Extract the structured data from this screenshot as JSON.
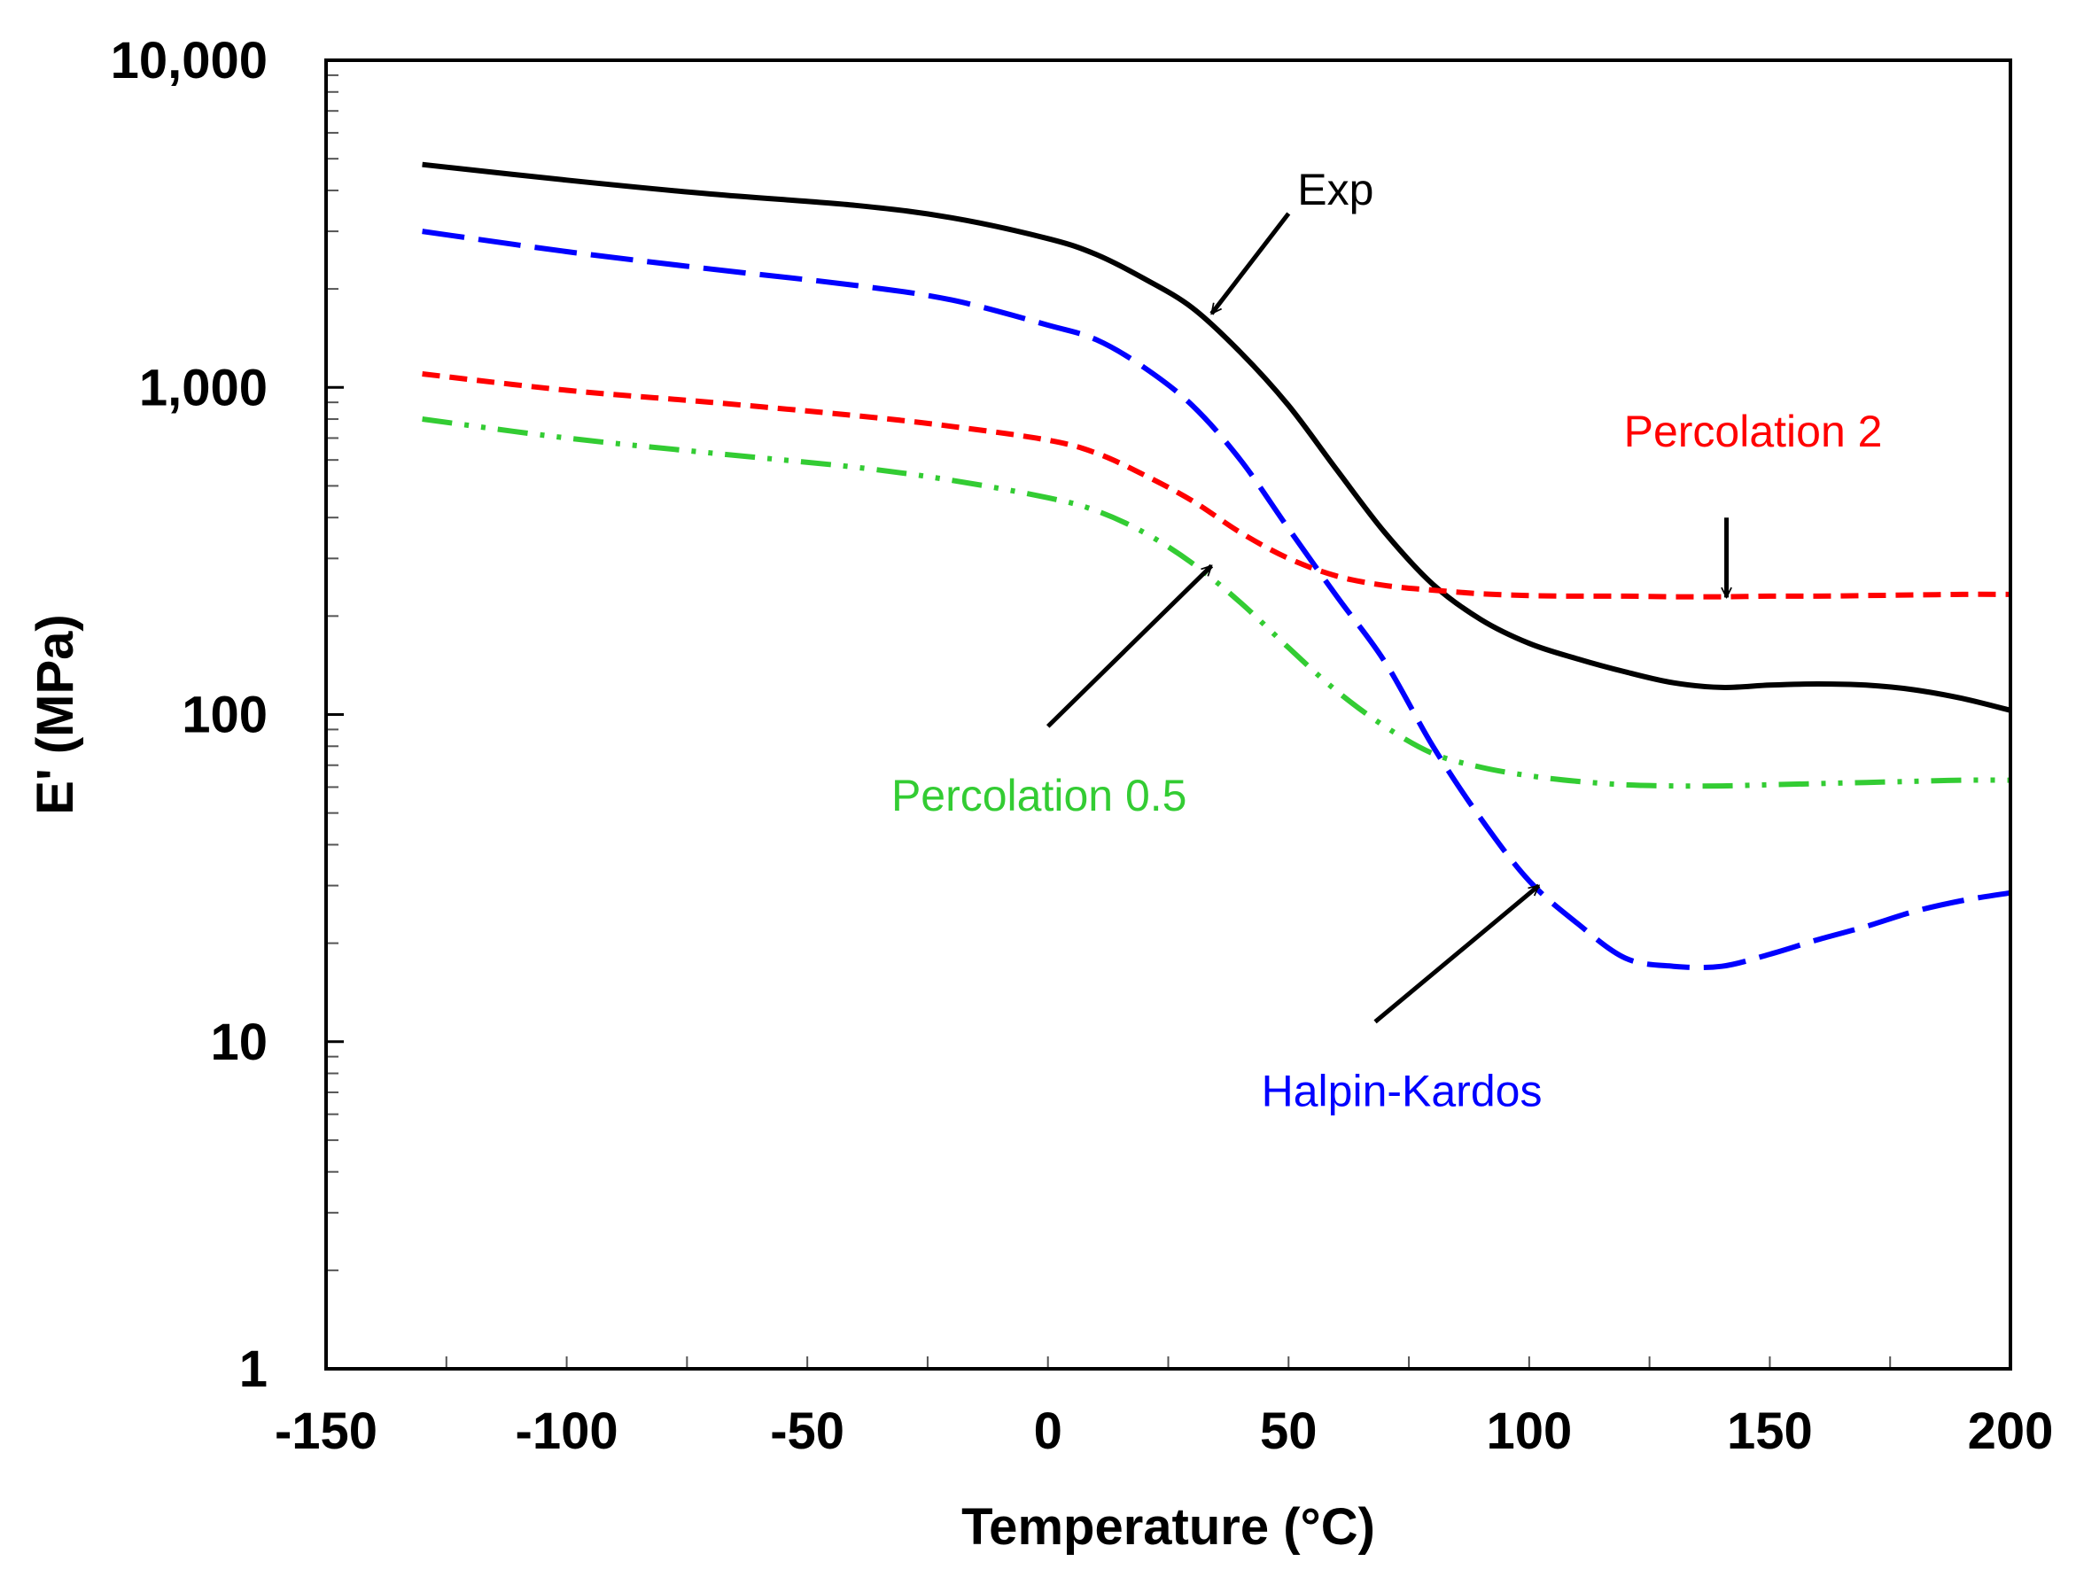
{
  "chart_data": {
    "type": "line",
    "title": "",
    "xlabel": "Temperature (°C)",
    "ylabel": "E' (MPa)",
    "xlim": [
      -150,
      200
    ],
    "ylim": [
      1,
      10000
    ],
    "yscale": "log",
    "grid": false,
    "x_ticks": [
      -150,
      -100,
      -50,
      0,
      50,
      100,
      150,
      200
    ],
    "x_tick_labels": [
      "-150",
      "-100",
      "-50",
      "0",
      "50",
      "100",
      "150",
      "200"
    ],
    "y_ticks": [
      1,
      10,
      100,
      1000,
      10000
    ],
    "y_tick_labels": [
      "1",
      "10",
      "100",
      "1,000",
      "10,000"
    ],
    "series": [
      {
        "name": "Exp",
        "color": "#000000",
        "dash": "solid",
        "x": [
          -130,
          -100,
          -70,
          -40,
          -20,
          0,
          10,
          20,
          30,
          40,
          50,
          60,
          70,
          80,
          90,
          100,
          110,
          120,
          130,
          140,
          150,
          160,
          170,
          180,
          190,
          200
        ],
        "y": [
          4800,
          4300,
          3900,
          3600,
          3300,
          2850,
          2550,
          2150,
          1750,
          1280,
          880,
          560,
          360,
          250,
          195,
          165,
          148,
          135,
          125,
          121,
          123,
          124,
          123,
          119,
          112,
          103
        ]
      },
      {
        "name": "Halpin-Kardos",
        "color": "#0000ff",
        "dash": "long-dash",
        "x": [
          -130,
          -100,
          -70,
          -40,
          -20,
          0,
          10,
          20,
          30,
          40,
          50,
          60,
          70,
          80,
          90,
          100,
          110,
          120,
          130,
          140,
          150,
          160,
          170,
          180,
          190,
          200
        ],
        "y": [
          3000,
          2600,
          2300,
          2050,
          1850,
          1550,
          1400,
          1150,
          880,
          600,
          370,
          230,
          145,
          80,
          48,
          31,
          23,
          18,
          17,
          17,
          18.5,
          20.5,
          22.5,
          25,
          27,
          28.5
        ]
      },
      {
        "name": "Percolation 2",
        "color": "#ff0000",
        "dash": "short-dash",
        "x": [
          -130,
          -100,
          -70,
          -40,
          -20,
          0,
          10,
          20,
          30,
          40,
          50,
          60,
          70,
          80,
          90,
          100,
          110,
          120,
          130,
          140,
          150,
          160,
          170,
          180,
          190,
          200
        ],
        "y": [
          1100,
          980,
          900,
          820,
          760,
          690,
          630,
          540,
          450,
          360,
          300,
          265,
          248,
          240,
          234,
          231,
          230,
          230,
          229,
          229,
          230,
          230,
          231,
          232,
          233,
          233
        ]
      },
      {
        "name": "Percolation 0.5",
        "color": "#33cc33",
        "dash": "dash-dot-dot",
        "x": [
          -130,
          -100,
          -70,
          -40,
          -20,
          0,
          10,
          20,
          30,
          40,
          50,
          60,
          70,
          80,
          90,
          100,
          110,
          120,
          130,
          140,
          150,
          160,
          170,
          180,
          190,
          200
        ],
        "y": [
          800,
          700,
          630,
          570,
          520,
          460,
          420,
          360,
          290,
          220,
          160,
          118,
          92,
          76,
          69,
          65,
          62.5,
          61,
          60.5,
          60.5,
          61,
          61.5,
          62,
          62.5,
          63,
          63
        ]
      }
    ],
    "annotations": [
      {
        "text": "Exp",
        "series": "Exp",
        "color": "#000000",
        "point": [
          34,
          1680
        ],
        "arrow_from": [
          50,
          3400
        ]
      },
      {
        "text": "Percolation 2",
        "series": "Percolation 2",
        "color": "#ff0000",
        "point": [
          141,
          228
        ],
        "arrow_from": [
          141,
          400
        ]
      },
      {
        "text": "Percolation 0.5",
        "series": "Percolation 0.5",
        "color": "#33cc33",
        "point": [
          34,
          285
        ],
        "arrow_from": [
          0,
          92
        ]
      },
      {
        "text": "Halpin-Kardos",
        "series": "Halpin-Kardos",
        "color": "#0000ff",
        "point": [
          102,
          30
        ],
        "arrow_from": [
          68,
          11.5
        ]
      }
    ]
  }
}
